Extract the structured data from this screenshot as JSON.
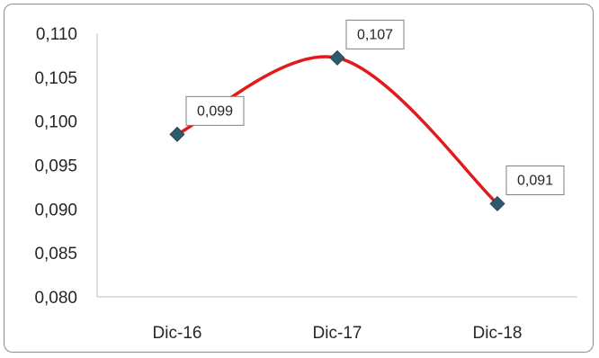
{
  "chart_data": {
    "type": "line",
    "categories": [
      "Dic-16",
      "Dic-17",
      "Dic-18"
    ],
    "series": [
      {
        "values": [
          0.0985,
          0.1072,
          0.0906
        ],
        "data_labels": [
          "0,099",
          "0,107",
          "0,091"
        ]
      }
    ],
    "y_ticks": [
      "0,080",
      "0,085",
      "0,090",
      "0,095",
      "0,100",
      "0,105",
      "0,110"
    ],
    "ylim": [
      0.08,
      0.11
    ],
    "ystep": 0.005,
    "smooth": true,
    "grid": false,
    "legend": "none",
    "colors": {
      "line": "#e31a1c",
      "marker": "#2e5a6b",
      "axis": "#bfbfbf",
      "label_border": "#7f7f7f",
      "text": "#262626"
    }
  }
}
